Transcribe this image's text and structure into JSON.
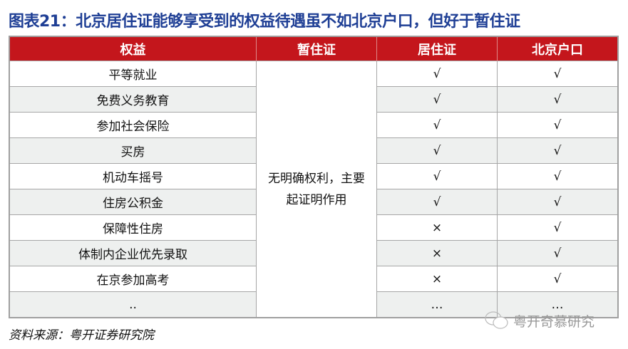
{
  "title": "图表21：北京居住证能够享受到的权益待遇虽不如北京户口，但好于暂住证",
  "headers": [
    "权益",
    "暂住证",
    "居住证",
    "北京户口"
  ],
  "temp_permit_note": "无明确权利，主要起证明作用",
  "rows": [
    {
      "right": "平等就业",
      "residence": "√",
      "hukou": "√"
    },
    {
      "right": "免费义务教育",
      "residence": "√",
      "hukou": "√"
    },
    {
      "right": "参加社会保险",
      "residence": "√",
      "hukou": "√"
    },
    {
      "right": "买房",
      "residence": "√",
      "hukou": "√"
    },
    {
      "right": "机动车摇号",
      "residence": "√",
      "hukou": "√"
    },
    {
      "right": "住房公积金",
      "residence": "√",
      "hukou": "√"
    },
    {
      "right": "保障性住房",
      "residence": "×",
      "hukou": "√"
    },
    {
      "right": "体制内企业优先录取",
      "residence": "×",
      "hukou": "√"
    },
    {
      "right": "在京参加高考",
      "residence": "×",
      "hukou": "√"
    },
    {
      "right": "..",
      "residence": "…",
      "hukou": "…"
    }
  ],
  "source": "资料来源：粤开证券研究院",
  "watermark": "粤开奇慕研究"
}
